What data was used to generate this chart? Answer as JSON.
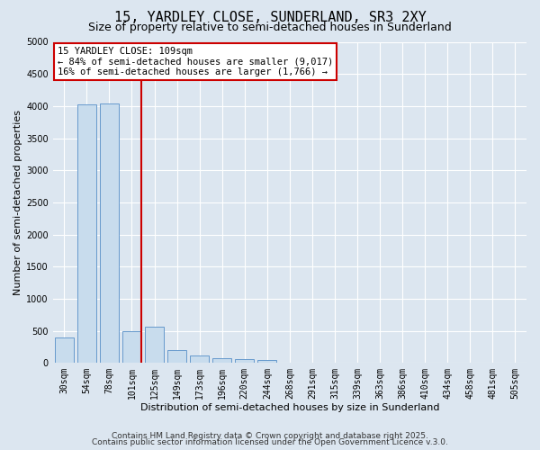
{
  "title": "15, YARDLEY CLOSE, SUNDERLAND, SR3 2XY",
  "subtitle": "Size of property relative to semi-detached houses in Sunderland",
  "xlabel": "Distribution of semi-detached houses by size in Sunderland",
  "ylabel": "Number of semi-detached properties",
  "annotation_title": "15 YARDLEY CLOSE: 109sqm",
  "annotation_line1": "← 84% of semi-detached houses are smaller (9,017)",
  "annotation_line2": "16% of semi-detached houses are larger (1,766) →",
  "categories": [
    "30sqm",
    "54sqm",
    "78sqm",
    "101sqm",
    "125sqm",
    "149sqm",
    "173sqm",
    "196sqm",
    "220sqm",
    "244sqm",
    "268sqm",
    "291sqm",
    "315sqm",
    "339sqm",
    "363sqm",
    "386sqm",
    "410sqm",
    "434sqm",
    "458sqm",
    "481sqm",
    "505sqm"
  ],
  "values": [
    390,
    4020,
    4040,
    500,
    560,
    195,
    110,
    75,
    55,
    45,
    0,
    0,
    0,
    0,
    0,
    0,
    0,
    0,
    0,
    0,
    0
  ],
  "bar_color": "#c8dced",
  "bar_edge_color": "#6699cc",
  "vline_color": "#cc0000",
  "vline_pos": 3.42,
  "ylim": [
    0,
    5000
  ],
  "yticks": [
    0,
    500,
    1000,
    1500,
    2000,
    2500,
    3000,
    3500,
    4000,
    4500,
    5000
  ],
  "bg_color": "#dce6f0",
  "plot_bg_color": "#dce6f0",
  "grid_color": "#ffffff",
  "footer1": "Contains HM Land Registry data © Crown copyright and database right 2025.",
  "footer2": "Contains public sector information licensed under the Open Government Licence v.3.0.",
  "title_fontsize": 11,
  "subtitle_fontsize": 9,
  "axis_label_fontsize": 8,
  "tick_fontsize": 7,
  "annotation_fontsize": 7.5,
  "footer_fontsize": 6.5
}
